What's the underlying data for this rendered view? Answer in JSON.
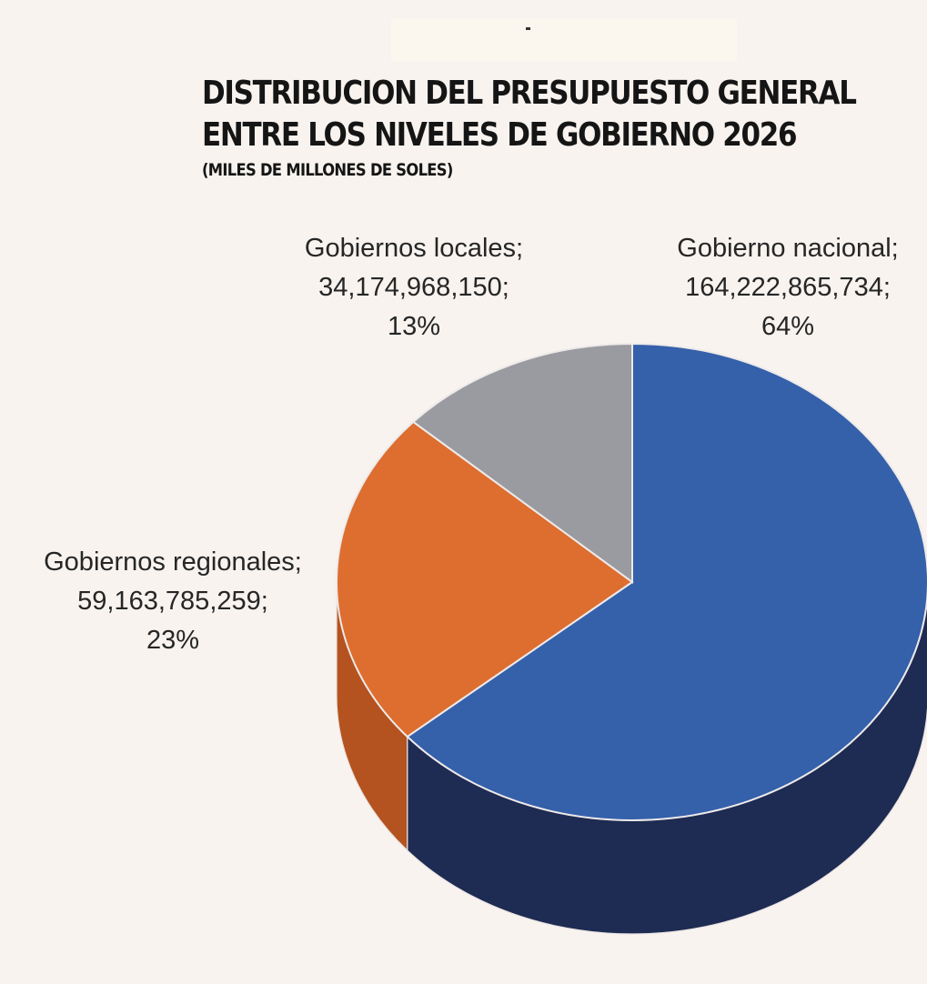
{
  "chart_data": {
    "type": "pie",
    "title_lines": [
      "DISTRIBUCION DEL PRESUPUESTO GENERAL",
      "ENTRE LOS NIVELES DE GOBIERNO 2026"
    ],
    "subtitle": "(MILES DE MILLONES DE SOLES)",
    "slices": [
      {
        "label_lines": [
          "Gobierno nacional;",
          "164,222,865,734;",
          "64%"
        ],
        "value": 164222865734,
        "percent": 64,
        "color": "#3560aa",
        "side_color": "#1e2b52"
      },
      {
        "label_lines": [
          "Gobiernos regionales;",
          "59,163,785,259;",
          "23%"
        ],
        "value": 59163785259,
        "percent": 23,
        "color": "#dd6e2f",
        "side_color": "#b4531f"
      },
      {
        "label_lines": [
          "Gobiernos locales;",
          "34,174,968,150;",
          "13%"
        ],
        "value": 34174968150,
        "percent": 13,
        "color": "#9a9ba0",
        "side_color": "#6e6f73"
      }
    ],
    "style": "3d-pie",
    "legend": "none"
  },
  "colors": {
    "background": "#f8f3ef",
    "text": "#151515"
  }
}
